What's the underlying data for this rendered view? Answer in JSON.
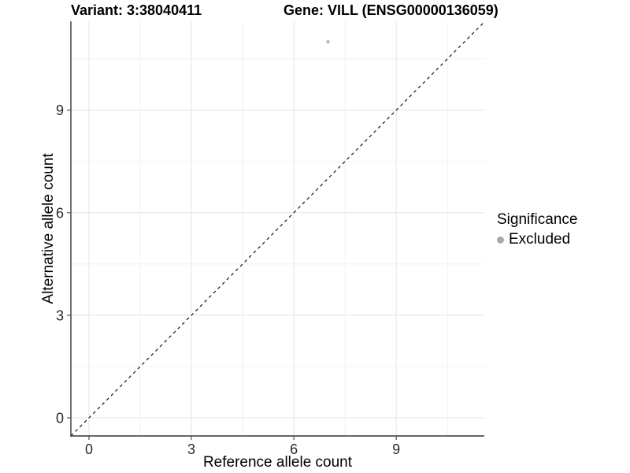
{
  "chart_data": {
    "type": "scatter",
    "title_variant": "Variant: 3:38040411",
    "title_gene": "Gene: VILL (ENSG00000136059)",
    "xlabel": "Reference allele count",
    "ylabel": "Alternative allele count",
    "xticks": [
      0,
      3,
      6,
      9
    ],
    "yticks": [
      0,
      3,
      6,
      9
    ],
    "xminor": [
      1.5,
      4.5,
      7.5,
      10.5
    ],
    "yminor": [
      1.5,
      4.5,
      7.5,
      10.5
    ],
    "xlim": [
      -0.53,
      11.58
    ],
    "ylim": [
      -0.53,
      11.6
    ],
    "grid": "on",
    "points": [
      {
        "x": 7,
        "y": 11,
        "significance": "Excluded"
      }
    ],
    "reference_line": {
      "slope": 1,
      "intercept": 0,
      "linetype": "dashed",
      "color": "#000000"
    },
    "legend": {
      "title": "Significance",
      "position": "right",
      "items": [
        {
          "label": "Excluded",
          "color": "#a9a9a9"
        }
      ]
    },
    "style": {
      "point_color": "#bebebe",
      "point_radius": 2.3,
      "grid_major_color": "#e4e4e4",
      "grid_minor_color": "#f1f1f1",
      "axis_color": "#333333",
      "tick_color": "#555555",
      "tick_label_color": "#2b2b2b",
      "background": "#ffffff"
    }
  }
}
